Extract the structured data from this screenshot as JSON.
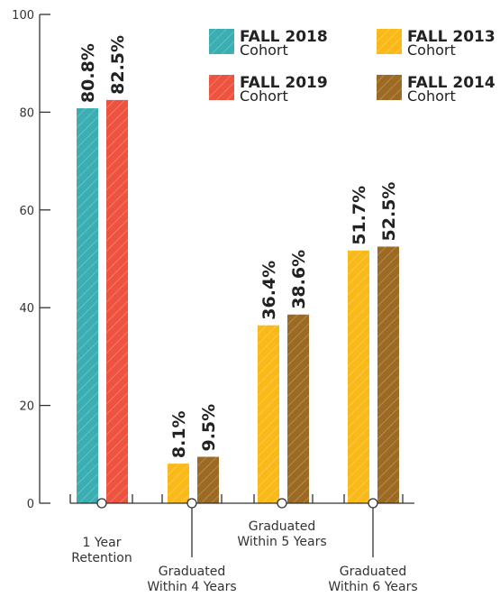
{
  "chart_data": {
    "type": "bar",
    "y_ticks": [
      0,
      20,
      40,
      60,
      80,
      100
    ],
    "ylim": [
      0,
      100
    ],
    "grid": false,
    "legend_position": "top-right",
    "groups": [
      {
        "label": [
          "1 Year",
          "Retention"
        ],
        "bars": [
          {
            "series": "FALL 2018",
            "value": 80.8,
            "label": "80.8%"
          },
          {
            "series": "FALL 2019",
            "value": 82.5,
            "label": "82.5%"
          }
        ]
      },
      {
        "label": [
          "Graduated",
          "Within 4 Years"
        ],
        "bars": [
          {
            "series": "FALL 2013",
            "value": 8.1,
            "label": "8.1%"
          },
          {
            "series": "FALL 2014",
            "value": 9.5,
            "label": "9.5%"
          }
        ]
      },
      {
        "label": [
          "Graduated",
          "Within 5 Years"
        ],
        "bars": [
          {
            "series": "FALL 2013",
            "value": 36.4,
            "label": "36.4%"
          },
          {
            "series": "FALL 2014",
            "value": 38.6,
            "label": "38.6%"
          }
        ]
      },
      {
        "label": [
          "Graduated",
          "Within 6 Years"
        ],
        "bars": [
          {
            "series": "FALL 2013",
            "value": 51.7,
            "label": "51.7%"
          },
          {
            "series": "FALL 2014",
            "value": 52.5,
            "label": "52.5%"
          }
        ]
      }
    ],
    "series": [
      {
        "name": "FALL 2018",
        "sub": "Cohort",
        "color": "#3aaeb2"
      },
      {
        "name": "FALL 2019",
        "sub": "Cohort",
        "color": "#ee5340"
      },
      {
        "name": "FALL 2013",
        "sub": "Cohort",
        "color": "#f9b918"
      },
      {
        "name": "FALL 2014",
        "sub": "Cohort",
        "color": "#9c6a22"
      }
    ]
  }
}
